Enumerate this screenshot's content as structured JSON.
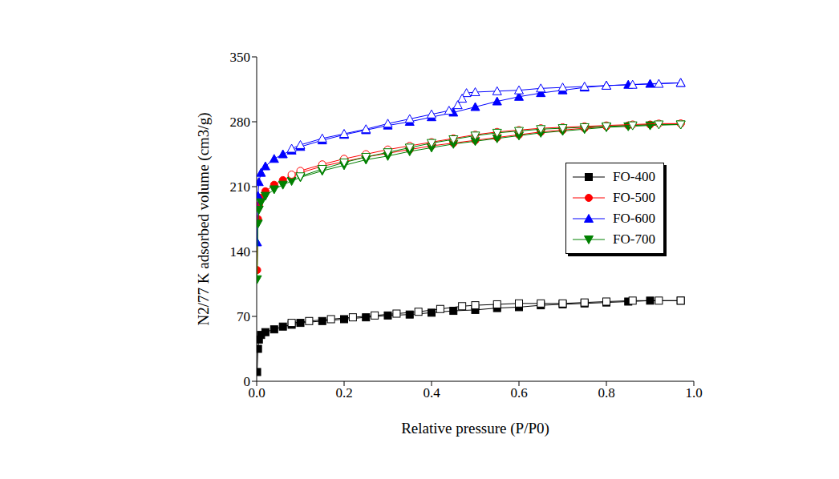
{
  "chart_data": {
    "type": "line",
    "xlabel": "Relative pressure (P/P0)",
    "ylabel": "N2/77 K adsorbed volume (cm3/g)",
    "xlim": [
      0,
      1
    ],
    "xticks": [
      {
        "value": 0,
        "label": "0.0"
      },
      {
        "value": 0.2,
        "label": "0.2"
      },
      {
        "value": 0.4,
        "label": "0.4"
      },
      {
        "value": 0.6,
        "label": "0.6"
      },
      {
        "value": 0.8,
        "label": "0.8"
      },
      {
        "value": 1,
        "label": "1.0"
      }
    ],
    "ylim": [
      0,
      350
    ],
    "yticks": [
      0,
      70,
      140,
      210,
      280,
      350
    ],
    "legend": "right",
    "series": [
      {
        "name": "FO-400",
        "color": "#000000",
        "marker": "square",
        "x": [
          0.001,
          0.003,
          0.005,
          0.01,
          0.02,
          0.04,
          0.06,
          0.08,
          0.1,
          0.15,
          0.2,
          0.25,
          0.3,
          0.35,
          0.4,
          0.45,
          0.5,
          0.55,
          0.6,
          0.65,
          0.7,
          0.75,
          0.8,
          0.85,
          0.9,
          0.97
        ],
        "values": [
          10,
          35,
          45,
          50,
          53,
          56,
          59,
          61,
          63,
          65,
          67,
          69,
          71,
          72,
          74,
          76,
          77,
          79,
          80,
          82,
          83,
          84,
          85,
          86,
          87,
          87
        ],
        "desorption_x": [
          0.97,
          0.92,
          0.86,
          0.8,
          0.75,
          0.7,
          0.65,
          0.6,
          0.55,
          0.5,
          0.47,
          0.42,
          0.37,
          0.32,
          0.27,
          0.22,
          0.17,
          0.12,
          0.08
        ],
        "desorption_values": [
          87,
          87,
          87,
          86,
          85,
          84,
          84,
          84,
          83,
          82,
          81,
          78,
          75,
          73,
          71,
          69,
          67,
          65,
          63
        ]
      },
      {
        "name": "FO-500",
        "color": "#ff0000",
        "marker": "circle",
        "x": [
          0.001,
          0.003,
          0.005,
          0.01,
          0.02,
          0.04,
          0.06,
          0.08,
          0.1,
          0.15,
          0.2,
          0.25,
          0.3,
          0.35,
          0.4,
          0.45,
          0.5,
          0.55,
          0.6,
          0.65,
          0.7,
          0.75,
          0.8,
          0.85,
          0.9,
          0.97
        ],
        "values": [
          120,
          175,
          190,
          198,
          205,
          212,
          217,
          221,
          225,
          232,
          237,
          242,
          246,
          250,
          254,
          257,
          260,
          263,
          266,
          269,
          271,
          273,
          275,
          276,
          277,
          278
        ],
        "desorption_x": [
          0.97,
          0.92,
          0.86,
          0.8,
          0.75,
          0.7,
          0.65,
          0.6,
          0.55,
          0.5,
          0.45,
          0.4,
          0.35,
          0.3,
          0.25,
          0.2,
          0.15,
          0.1,
          0.08
        ],
        "desorption_values": [
          278,
          278,
          277,
          276,
          275,
          274,
          273,
          271,
          269,
          266,
          262,
          258,
          254,
          250,
          245,
          240,
          234,
          227,
          223
        ]
      },
      {
        "name": "FO-600",
        "color": "#0000ff",
        "marker": "triangle",
        "x": [
          0.001,
          0.003,
          0.005,
          0.01,
          0.02,
          0.04,
          0.06,
          0.08,
          0.1,
          0.15,
          0.2,
          0.25,
          0.3,
          0.35,
          0.4,
          0.45,
          0.5,
          0.55,
          0.6,
          0.65,
          0.7,
          0.75,
          0.8,
          0.85,
          0.9,
          0.97
        ],
        "values": [
          150,
          200,
          215,
          225,
          232,
          240,
          245,
          249,
          253,
          260,
          266,
          271,
          276,
          280,
          285,
          290,
          296,
          302,
          307,
          311,
          314,
          317,
          319,
          320,
          321,
          322
        ],
        "desorption_x": [
          0.97,
          0.92,
          0.86,
          0.8,
          0.75,
          0.7,
          0.65,
          0.6,
          0.55,
          0.5,
          0.48,
          0.47,
          0.46,
          0.44,
          0.4,
          0.35,
          0.3,
          0.25,
          0.2,
          0.15,
          0.1,
          0.08
        ],
        "desorption_values": [
          322,
          321,
          320,
          319,
          318,
          317,
          316,
          314,
          313,
          312,
          311,
          305,
          298,
          292,
          288,
          283,
          278,
          272,
          267,
          262,
          255,
          251
        ]
      },
      {
        "name": "FO-700",
        "color": "#008000",
        "marker": "triangle_down",
        "x": [
          0.001,
          0.003,
          0.005,
          0.01,
          0.02,
          0.04,
          0.06,
          0.08,
          0.1,
          0.15,
          0.2,
          0.25,
          0.3,
          0.35,
          0.4,
          0.45,
          0.5,
          0.55,
          0.6,
          0.65,
          0.7,
          0.75,
          0.8,
          0.85,
          0.9,
          0.97
        ],
        "values": [
          110,
          170,
          185,
          193,
          200,
          207,
          212,
          216,
          220,
          227,
          233,
          239,
          243,
          248,
          252,
          256,
          259,
          262,
          265,
          268,
          270,
          272,
          274,
          275,
          276,
          277
        ],
        "desorption_x": [
          0.97,
          0.92,
          0.86,
          0.8,
          0.75,
          0.7,
          0.65,
          0.6,
          0.55,
          0.5,
          0.45,
          0.4,
          0.35,
          0.3,
          0.25,
          0.2,
          0.15,
          0.1
        ],
        "desorption_values": [
          277,
          277,
          276,
          275,
          274,
          273,
          272,
          270,
          268,
          265,
          261,
          257,
          252,
          247,
          242,
          236,
          229,
          221
        ]
      }
    ]
  }
}
